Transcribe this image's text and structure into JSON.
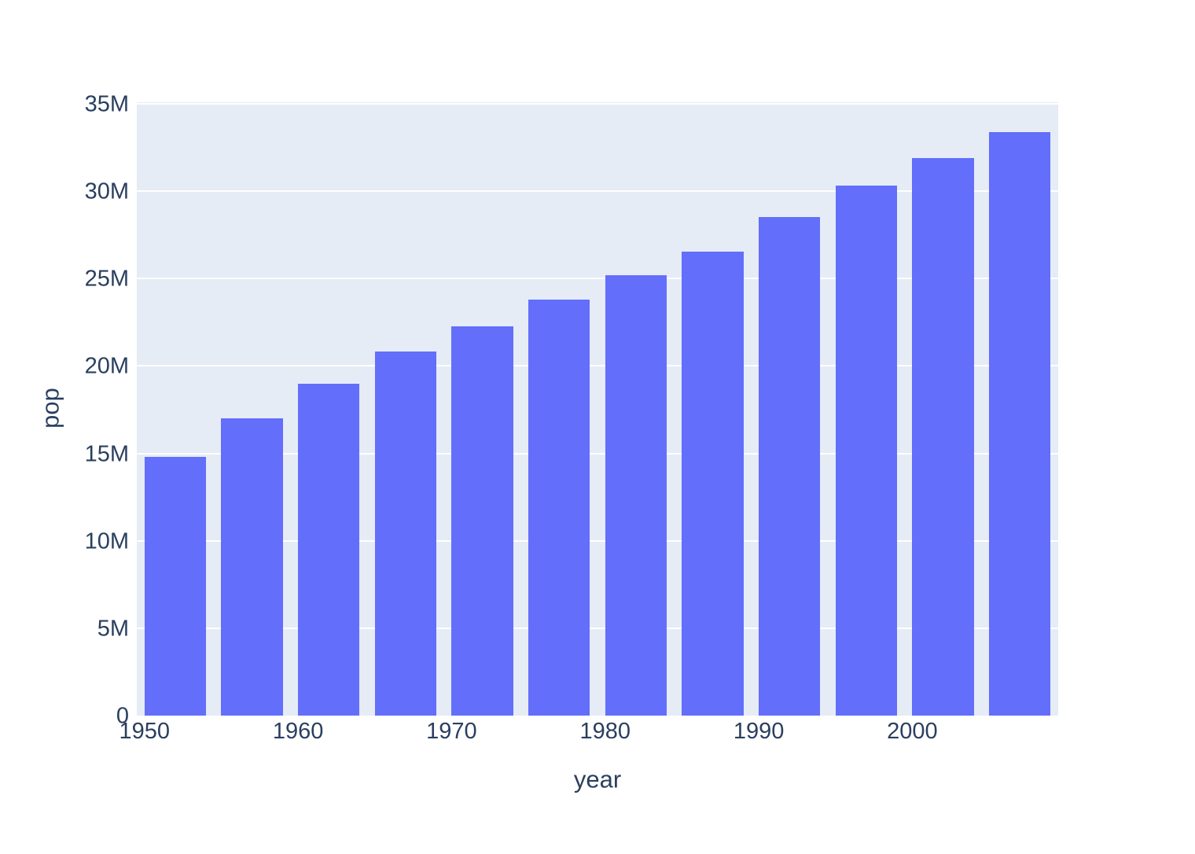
{
  "chart_data": {
    "type": "bar",
    "title": "",
    "xlabel": "year",
    "ylabel": "pop",
    "x": [
      1952,
      1957,
      1962,
      1967,
      1972,
      1977,
      1982,
      1987,
      1992,
      1997,
      2002,
      2007
    ],
    "values": [
      14785584,
      17010154,
      18985849,
      20819767,
      22284500,
      23796400,
      25201900,
      26549700,
      28523502,
      30305843,
      31902268,
      33390141
    ],
    "xlim": [
      1949.5,
      2009.5
    ],
    "ylim": [
      0,
      35050000
    ],
    "bar_width_years": 4,
    "xticks": [
      {
        "value": 1950,
        "label": "1950"
      },
      {
        "value": 1960,
        "label": "1960"
      },
      {
        "value": 1970,
        "label": "1970"
      },
      {
        "value": 1980,
        "label": "1980"
      },
      {
        "value": 1990,
        "label": "1990"
      },
      {
        "value": 2000,
        "label": "2000"
      }
    ],
    "yticks": [
      {
        "value": 0,
        "label": "0"
      },
      {
        "value": 5000000,
        "label": "5M"
      },
      {
        "value": 10000000,
        "label": "10M"
      },
      {
        "value": 15000000,
        "label": "15M"
      },
      {
        "value": 20000000,
        "label": "20M"
      },
      {
        "value": 25000000,
        "label": "25M"
      },
      {
        "value": 30000000,
        "label": "30M"
      },
      {
        "value": 35000000,
        "label": "35M"
      }
    ],
    "grid": true,
    "legend": "none",
    "colors": {
      "bar": "#636EFA",
      "plot_background": "#E5ECF6",
      "gridline": "#FFFFFF",
      "text": "#2A3F5F",
      "paper_background": "#FFFFFF"
    }
  }
}
